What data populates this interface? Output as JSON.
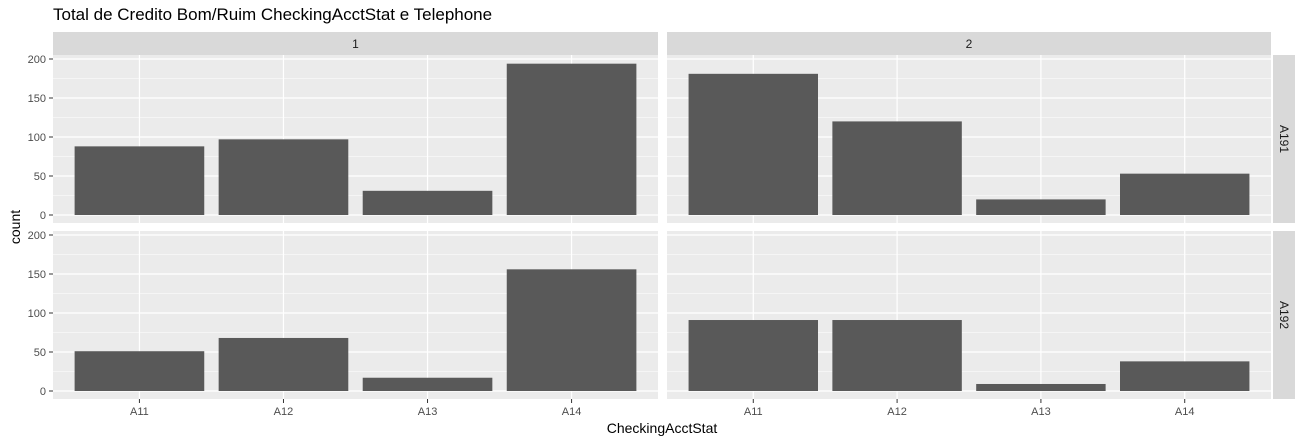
{
  "chart_data": {
    "type": "bar",
    "title": "Total de Credito Bom/Ruim CheckingAcctStat e Telephone",
    "xlabel": "CheckingAcctStat",
    "ylabel": "count",
    "categories": [
      "A11",
      "A12",
      "A13",
      "A14"
    ],
    "ylim": [
      0,
      200
    ],
    "yticks": [
      0,
      50,
      100,
      150,
      200
    ],
    "grid": true,
    "facet_columns": [
      "1",
      "2"
    ],
    "facet_rows": [
      "A191",
      "A192"
    ],
    "panels": [
      {
        "col": "1",
        "row": "A191",
        "values": [
          88,
          97,
          31,
          194
        ]
      },
      {
        "col": "2",
        "row": "A191",
        "values": [
          181,
          120,
          20,
          53
        ]
      },
      {
        "col": "1",
        "row": "A192",
        "values": [
          51,
          68,
          17,
          156
        ]
      },
      {
        "col": "2",
        "row": "A192",
        "values": [
          91,
          91,
          9,
          38
        ]
      }
    ],
    "colors": {
      "bar": "#595959",
      "panel_bg": "#ebebeb",
      "strip_bg": "#d9d9d9",
      "grid": "#ffffff",
      "text": "#4d4d4d"
    }
  }
}
